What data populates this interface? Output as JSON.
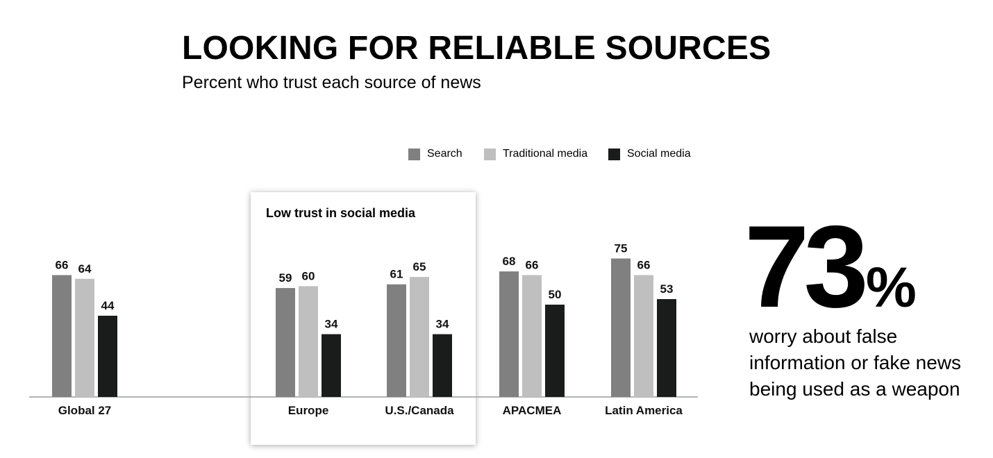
{
  "title": "LOOKING FOR RELIABLE SOURCES",
  "subtitle": "Percent who trust each source of news",
  "highlight_label": "Low trust in social media",
  "stat": {
    "number": "73",
    "percent": "%",
    "caption": "worry about false information or fake news being used as a weapon"
  },
  "chart_data": {
    "type": "bar",
    "title": "LOOKING FOR RELIABLE SOURCES",
    "subtitle": "Percent who trust each source of news",
    "categories": [
      "Global 27",
      "Europe",
      "U.S./Canada",
      "APACMEA",
      "Latin America"
    ],
    "series": [
      {
        "name": "Search",
        "color": "#808080",
        "values": [
          66,
          59,
          61,
          68,
          75
        ]
      },
      {
        "name": "Traditional media",
        "color": "#bfbfbf",
        "values": [
          64,
          60,
          65,
          66,
          66
        ]
      },
      {
        "name": "Social media",
        "color": "#1a1c1c",
        "values": [
          44,
          34,
          34,
          50,
          53
        ]
      }
    ],
    "ylim": [
      0,
      100
    ],
    "grid": false,
    "legend_position": "top-right",
    "data_labels": true
  }
}
